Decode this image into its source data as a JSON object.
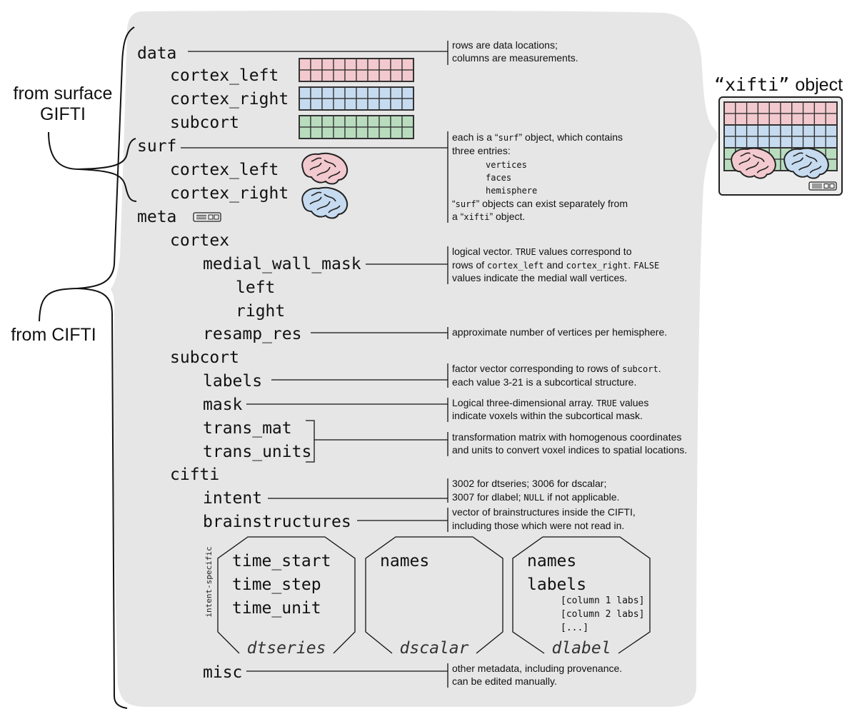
{
  "side_labels": {
    "gifti_line1": "from surface",
    "gifti_line2": "GIFTI",
    "cifti": "from CIFTI"
  },
  "tree": {
    "data": "data",
    "data_cortex_left": "cortex_left",
    "data_cortex_right": "cortex_right",
    "data_subcort": "subcort",
    "surf": "surf",
    "surf_cortex_left": "cortex_left",
    "surf_cortex_right": "cortex_right",
    "meta": "meta",
    "cortex": "cortex",
    "medial_wall_mask": "medial_wall_mask",
    "left": "left",
    "right": "right",
    "resamp_res": "resamp_res",
    "subcort": "subcort",
    "labels": "labels",
    "mask": "mask",
    "trans_mat": "trans_mat",
    "trans_units": "trans_units",
    "cifti": "cifti",
    "intent": "intent",
    "brainstructures": "brainstructures",
    "misc": "misc"
  },
  "intent_specific": {
    "label": "intent-specific",
    "panels": [
      {
        "name": "dtseries",
        "entries": [
          "time_start",
          "time_step",
          "time_unit"
        ],
        "subentries": []
      },
      {
        "name": "dscalar",
        "entries": [
          "names"
        ],
        "subentries": []
      },
      {
        "name": "dlabel",
        "entries": [
          "names",
          "labels"
        ],
        "subentries": [
          "[column 1 labs]",
          "[column 2 labs]",
          "[...]"
        ]
      }
    ]
  },
  "annotations": {
    "data": [
      [
        [
          "rows are data locations;"
        ]
      ],
      [
        [
          "columns are measurements."
        ]
      ]
    ],
    "surf": [
      [
        [
          "each is a “"
        ],
        [
          "surf",
          "mono"
        ],
        [
          "” object, which contains"
        ]
      ],
      [
        [
          "three entries:"
        ]
      ],
      [
        [
          "vertices",
          "mono-indent"
        ]
      ],
      [
        [
          "faces",
          "mono-indent"
        ]
      ],
      [
        [
          "hemisphere",
          "mono-indent"
        ]
      ],
      [
        [
          "“"
        ],
        [
          "surf",
          "mono"
        ],
        [
          "” objects can exist separately from"
        ]
      ],
      [
        [
          "a “"
        ],
        [
          "xifti",
          "mono"
        ],
        [
          "” object."
        ]
      ]
    ],
    "medial_wall_mask": [
      [
        [
          "logical vector. "
        ],
        [
          "TRUE",
          "mono"
        ],
        [
          " values correspond to"
        ]
      ],
      [
        [
          "rows of "
        ],
        [
          "cortex_left",
          "mono"
        ],
        [
          " and "
        ],
        [
          "cortex_right",
          "mono"
        ],
        [
          ". "
        ],
        [
          "FALSE",
          "mono"
        ]
      ],
      [
        [
          "values indicate the medial wall vertices."
        ]
      ]
    ],
    "resamp_res": [
      [
        [
          "approximate number of vertices per hemisphere."
        ]
      ]
    ],
    "labels": [
      [
        [
          "factor vector corresponding to rows of "
        ],
        [
          "subcort",
          "mono"
        ],
        [
          "."
        ]
      ],
      [
        [
          "each value 3-21 is a subcortical structure."
        ]
      ]
    ],
    "mask": [
      [
        [
          "Logical three-dimensional array. "
        ],
        [
          "TRUE",
          "mono"
        ],
        [
          " values"
        ]
      ],
      [
        [
          "indicate voxels within the subcortical mask."
        ]
      ]
    ],
    "trans": [
      [
        [
          "transformation matrix with homogenous coordinates"
        ]
      ],
      [
        [
          "and units to convert voxel indices to spatial locations."
        ]
      ]
    ],
    "intent": [
      [
        [
          "3002 for dtseries; 3006 for dscalar;"
        ]
      ],
      [
        [
          "3007 for dlabel; "
        ],
        [
          "NULL",
          "mono"
        ],
        [
          " if not applicable."
        ]
      ]
    ],
    "brainstructures": [
      [
        [
          "vector of brainstructures inside the CIFTI,"
        ]
      ],
      [
        [
          "including those which were not read in."
        ]
      ]
    ],
    "misc": [
      [
        [
          "other metadata, including provenance."
        ]
      ],
      [
        [
          "can be edited manually."
        ]
      ]
    ]
  },
  "xifti": {
    "title_quoted": "“xifti”",
    "title_word": "object"
  },
  "colors": {
    "background_panel": "#e6e6e6",
    "cortex_left": "#f2c9ce",
    "cortex_right": "#c6dbef",
    "subcort": "#b9dcbf",
    "outline": "#333333"
  },
  "icons": [
    "matrix-grid-icon",
    "brain-left-icon",
    "brain-right-icon",
    "meta-tag-icon"
  ]
}
